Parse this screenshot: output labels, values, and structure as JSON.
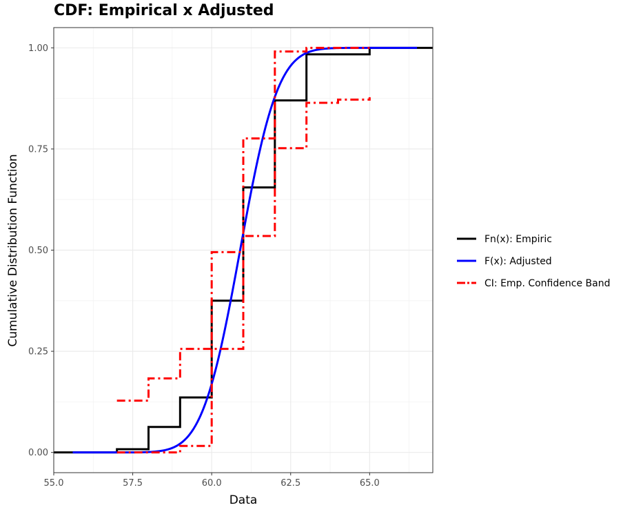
{
  "chart_data": {
    "type": "line",
    "title": "CDF: Empirical x Adjusted",
    "xlabel": "Data",
    "ylabel": "Cumulative Distribution Function",
    "xlim": [
      55.0,
      67.0
    ],
    "ylim": [
      -0.05,
      1.05
    ],
    "x_ticks": [
      {
        "value": 55.0,
        "label": "55.0"
      },
      {
        "value": 57.5,
        "label": "57.5"
      },
      {
        "value": 60.0,
        "label": "60.0"
      },
      {
        "value": 62.5,
        "label": "62.5"
      },
      {
        "value": 65.0,
        "label": "65.0"
      }
    ],
    "y_ticks": [
      {
        "value": 0.0,
        "label": "0.00"
      },
      {
        "value": 0.25,
        "label": "0.25"
      },
      {
        "value": 0.5,
        "label": "0.50"
      },
      {
        "value": 0.75,
        "label": "0.75"
      },
      {
        "value": 1.0,
        "label": "1.00"
      }
    ],
    "grid": true,
    "legend_position": "right",
    "series": [
      {
        "name": "Fn(x): Empiric",
        "color": "#000000",
        "style": "solid",
        "kind": "step",
        "points": [
          [
            55.0,
            0.0
          ],
          [
            57.0,
            0.0
          ],
          [
            57.0,
            0.008
          ],
          [
            58.0,
            0.008
          ],
          [
            58.0,
            0.063
          ],
          [
            59.0,
            0.063
          ],
          [
            59.0,
            0.136
          ],
          [
            60.0,
            0.136
          ],
          [
            60.0,
            0.375
          ],
          [
            61.0,
            0.375
          ],
          [
            61.0,
            0.655
          ],
          [
            62.0,
            0.655
          ],
          [
            62.0,
            0.87
          ],
          [
            63.0,
            0.87
          ],
          [
            63.0,
            0.984
          ],
          [
            65.0,
            0.984
          ],
          [
            65.0,
            1.0
          ],
          [
            67.0,
            1.0
          ]
        ]
      },
      {
        "name": "F(x): Adjusted",
        "color": "#0000ff",
        "style": "solid",
        "kind": "normal-cdf",
        "mean": 60.9,
        "sd": 0.94,
        "x_range": [
          55.6,
          66.5
        ]
      },
      {
        "name": "CI: Emp. Confidence Band",
        "color": "#ff0000",
        "style": "dashdot",
        "kind": "band",
        "upper": [
          [
            57.0,
            0.128
          ],
          [
            58.0,
            0.128
          ],
          [
            58.0,
            0.183
          ],
          [
            59.0,
            0.183
          ],
          [
            59.0,
            0.256
          ],
          [
            60.0,
            0.256
          ],
          [
            60.0,
            0.495
          ],
          [
            61.0,
            0.495
          ],
          [
            61.0,
            0.776
          ],
          [
            62.0,
            0.776
          ],
          [
            62.0,
            0.991
          ],
          [
            63.0,
            0.991
          ],
          [
            63.0,
            1.0
          ],
          [
            65.0,
            1.0
          ]
        ],
        "lower": [
          [
            57.0,
            0.0
          ],
          [
            58.0,
            0.0
          ],
          [
            59.0,
            0.0
          ],
          [
            59.0,
            0.016
          ],
          [
            60.0,
            0.016
          ],
          [
            60.0,
            0.256
          ],
          [
            61.0,
            0.256
          ],
          [
            61.0,
            0.535
          ],
          [
            62.0,
            0.535
          ],
          [
            62.0,
            0.752
          ],
          [
            63.0,
            0.752
          ],
          [
            63.0,
            0.864
          ],
          [
            64.0,
            0.864
          ],
          [
            64.0,
            0.872
          ],
          [
            65.0,
            0.872
          ],
          [
            65.0,
            0.878
          ]
        ]
      }
    ]
  }
}
